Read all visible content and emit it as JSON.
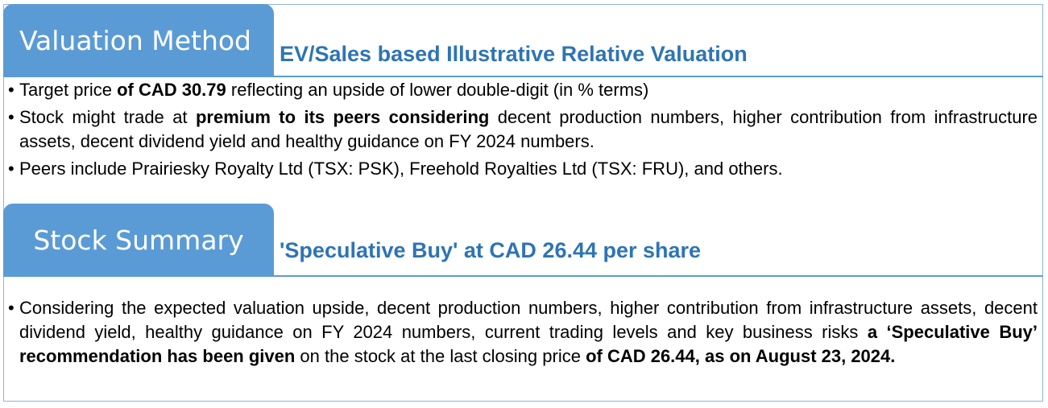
{
  "valuation": {
    "tab_label": "Valuation Method",
    "subtitle": "EV/Sales based Illustrative Relative Valuation",
    "bullets": [
      {
        "pre": "Target price ",
        "bold": "of CAD 30.79",
        "post": " reflecting an upside of lower double-digit (in % terms)"
      },
      {
        "pre": "Stock might trade at ",
        "bold": "premium to its peers considering",
        "post": " decent production numbers, higher contribution from infrastructure assets, decent dividend yield and healthy guidance on FY 2024 numbers."
      },
      {
        "pre": "Peers include Prairiesky Royalty Ltd (TSX: PSK), Freehold Royalties Ltd (TSX: FRU), and others.",
        "bold": "",
        "post": ""
      }
    ]
  },
  "summary": {
    "tab_label": "Stock Summary",
    "subtitle": "'Speculative Buy' at CAD 26.44 per share",
    "bullet": {
      "pre": "Considering the expected valuation upside, decent production numbers, higher contribution from infrastructure assets, decent dividend yield, healthy guidance on FY 2024 numbers, current trading levels and key business risks ",
      "bold1": "a ‘Speculative Buy’ recommendation has been given",
      "mid": " on the stock at the last closing price ",
      "bold2": "of CAD 26.44, as on August 23, 2024."
    }
  },
  "bullet_char": "•",
  "colors": {
    "tab_bg": "#5b9bd5",
    "subtitle": "#2e74b5",
    "border": "#8fb3d9"
  }
}
